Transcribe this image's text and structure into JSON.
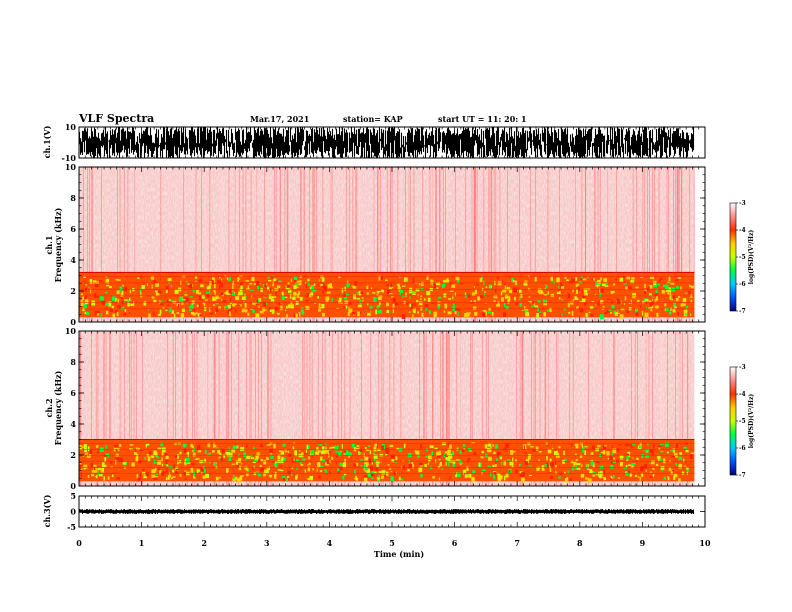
{
  "header": {
    "title": "VLF Spectra",
    "date": "Mar.17, 2021",
    "station": "station= KAP",
    "start_ut": "start  UT =   11: 20: 1"
  },
  "chart_data": [
    {
      "type": "line",
      "name": "waveform-ch1",
      "ylabel": "ch.1(V)",
      "ylim": [
        -10,
        10
      ],
      "y_tick_labels": [
        "10",
        "-10"
      ],
      "x_range_min": [
        0,
        9.83
      ],
      "signal_band_v": [
        -10,
        10
      ]
    },
    {
      "type": "heatmap",
      "name": "spectrogram-ch1",
      "ylabel": "ch.1 Frequency (kHz)",
      "ylim": [
        0,
        10
      ],
      "y_tick_labels": [
        "0",
        "2",
        "4",
        "6",
        "8",
        "10"
      ],
      "x_range_min": [
        0,
        9.83
      ],
      "intense_band_khz": [
        0.3,
        3.2
      ],
      "colorbar": {
        "label": "log(PSD)(V²/Hz)",
        "range": [
          -7,
          -3
        ],
        "tick_labels": [
          "-3",
          "-4",
          "-5",
          "-6",
          "-7"
        ],
        "colors": [
          "#000080",
          "#0050ff",
          "#00c8ff",
          "#00ff40",
          "#c8ff00",
          "#ffd000",
          "#ff3000",
          "#ff9090",
          "#ffffff"
        ]
      }
    },
    {
      "type": "heatmap",
      "name": "spectrogram-ch2",
      "ylabel": "ch.2 Frequency (kHz)",
      "ylim": [
        0,
        10
      ],
      "y_tick_labels": [
        "0",
        "2",
        "4",
        "6",
        "8",
        "10"
      ],
      "x_range_min": [
        0,
        9.83
      ],
      "intense_band_khz": [
        0.3,
        3.0
      ],
      "colorbar": {
        "label": "log(PSD)(V²/Hz)",
        "range": [
          -7,
          -3
        ],
        "tick_labels": [
          "-3",
          "-4",
          "-5",
          "-6",
          "-7"
        ],
        "colors": [
          "#000080",
          "#0050ff",
          "#00c8ff",
          "#00ff40",
          "#c8ff00",
          "#ffd000",
          "#ff3000",
          "#ff9090",
          "#ffffff"
        ]
      }
    },
    {
      "type": "line",
      "name": "waveform-ch3",
      "ylabel": "ch.3(V)",
      "ylim": [
        -5,
        5
      ],
      "y_tick_labels": [
        "5",
        "0",
        "-5"
      ],
      "x_range_min": [
        0,
        9.83
      ],
      "signal_band_v": [
        -0.8,
        0.8
      ]
    }
  ],
  "x_axis": {
    "xlabel": "Time  (min)",
    "xlim": [
      0,
      10
    ],
    "tick_labels": [
      "0",
      "1",
      "2",
      "3",
      "4",
      "5",
      "6",
      "7",
      "8",
      "9",
      "10"
    ]
  }
}
